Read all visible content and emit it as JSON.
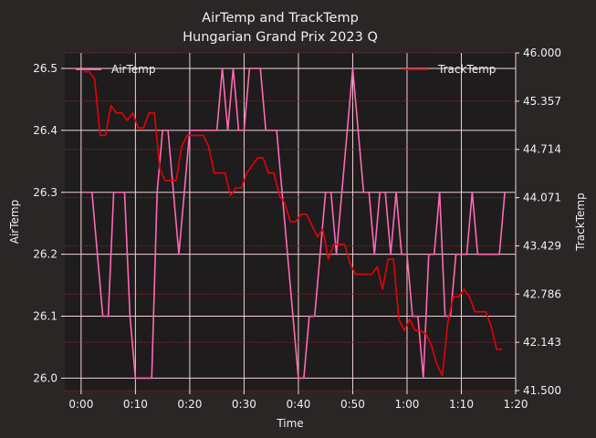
{
  "chart_data": {
    "type": "line",
    "title": "AirTemp and TrackTemp",
    "subtitle": "Hungarian Grand Prix 2023 Q",
    "xlabel": "Time",
    "ylabel_left": "AirTemp",
    "ylabel_right": "TrackTemp",
    "x_unit": "minutes",
    "xlim": [
      -3,
      80
    ],
    "x_ticks": [
      "0:00",
      "0:10",
      "0:20",
      "0:30",
      "0:40",
      "0:50",
      "1:00",
      "1:10",
      "1:20"
    ],
    "ylim_left": [
      25.98,
      26.525
    ],
    "y_ticks_left": [
      "26.0",
      "26.1",
      "26.2",
      "26.3",
      "26.4",
      "26.5"
    ],
    "ylim_right": [
      41.5,
      46.0
    ],
    "y_ticks_right": [
      "41.500",
      "42.143",
      "42.786",
      "43.429",
      "44.071",
      "44.714",
      "45.357",
      "46.000"
    ],
    "grid": true,
    "background": "#1e1c1c",
    "series": [
      {
        "name": "AirTemp",
        "axis": "left",
        "color": "#ff69b4",
        "legend_position": "top-left",
        "points": [
          [
            1,
            26.3
          ],
          [
            2,
            26.3
          ],
          [
            3,
            26.2
          ],
          [
            4,
            26.1
          ],
          [
            5,
            26.1
          ],
          [
            6,
            26.3
          ],
          [
            7,
            26.3
          ],
          [
            8,
            26.3
          ],
          [
            9,
            26.1
          ],
          [
            10,
            26.0
          ],
          [
            11,
            26.0
          ],
          [
            12,
            26.0
          ],
          [
            13,
            26.0
          ],
          [
            14,
            26.3
          ],
          [
            15,
            26.4
          ],
          [
            16,
            26.4
          ],
          [
            17,
            26.3
          ],
          [
            18,
            26.2
          ],
          [
            19,
            26.3
          ],
          [
            20,
            26.4
          ],
          [
            21,
            26.4
          ],
          [
            22,
            26.4
          ],
          [
            23,
            26.4
          ],
          [
            24,
            26.4
          ],
          [
            25,
            26.4
          ],
          [
            26,
            26.5
          ],
          [
            27,
            26.4
          ],
          [
            28,
            26.5
          ],
          [
            29,
            26.4
          ],
          [
            30,
            26.4
          ],
          [
            31,
            26.5
          ],
          [
            32,
            26.5
          ],
          [
            33,
            26.5
          ],
          [
            34,
            26.4
          ],
          [
            35,
            26.4
          ],
          [
            36,
            26.4
          ],
          [
            37,
            26.3
          ],
          [
            38,
            26.2
          ],
          [
            39,
            26.1
          ],
          [
            40,
            26.0
          ],
          [
            41,
            26.0
          ],
          [
            42,
            26.1
          ],
          [
            43,
            26.1
          ],
          [
            44,
            26.2
          ],
          [
            45,
            26.3
          ],
          [
            46,
            26.3
          ],
          [
            47,
            26.2
          ],
          [
            48,
            26.3
          ],
          [
            49,
            26.4
          ],
          [
            50,
            26.5
          ],
          [
            51,
            26.4
          ],
          [
            52,
            26.3
          ],
          [
            53,
            26.3
          ],
          [
            54,
            26.2
          ],
          [
            55,
            26.3
          ],
          [
            56,
            26.3
          ],
          [
            57,
            26.2
          ],
          [
            58,
            26.3
          ],
          [
            59,
            26.2
          ],
          [
            60,
            26.2
          ],
          [
            61,
            26.1
          ],
          [
            62,
            26.1
          ],
          [
            63,
            26.0
          ],
          [
            64,
            26.2
          ],
          [
            65,
            26.2
          ],
          [
            66,
            26.3
          ],
          [
            67,
            26.1
          ],
          [
            68,
            26.1
          ],
          [
            69,
            26.2
          ],
          [
            70,
            26.2
          ],
          [
            71,
            26.2
          ],
          [
            72,
            26.3
          ],
          [
            73,
            26.2
          ],
          [
            74,
            26.2
          ],
          [
            75,
            26.2
          ],
          [
            76,
            26.2
          ],
          [
            77,
            26.2
          ],
          [
            78,
            26.3
          ]
        ]
      },
      {
        "name": "TrackTemp",
        "axis": "right",
        "color": "#e8000b",
        "legend_position": "top-right",
        "points": [
          [
            0.5,
            45.75
          ],
          [
            1.5,
            45.75
          ],
          [
            2.5,
            45.65
          ],
          [
            3.5,
            44.9
          ],
          [
            4.5,
            44.9
          ],
          [
            5.5,
            45.3
          ],
          [
            6.5,
            45.2
          ],
          [
            7.5,
            45.2
          ],
          [
            8.5,
            45.1
          ],
          [
            9.5,
            45.2
          ],
          [
            10.5,
            45.0
          ],
          [
            11.5,
            45.0
          ],
          [
            12.5,
            45.2
          ],
          [
            13.5,
            45.2
          ],
          [
            14.5,
            44.45
          ],
          [
            15.5,
            44.3
          ],
          [
            16.5,
            44.3
          ],
          [
            17.5,
            44.3
          ],
          [
            18.5,
            44.75
          ],
          [
            19.5,
            44.9
          ],
          [
            20.5,
            44.9
          ],
          [
            21.5,
            44.9
          ],
          [
            22.5,
            44.9
          ],
          [
            23.5,
            44.75
          ],
          [
            24.5,
            44.4
          ],
          [
            25.5,
            44.4
          ],
          [
            26.5,
            44.4
          ],
          [
            27.5,
            44.1
          ],
          [
            28.5,
            44.2
          ],
          [
            29.5,
            44.2
          ],
          [
            30.5,
            44.4
          ],
          [
            31.5,
            44.5
          ],
          [
            32.5,
            44.6
          ],
          [
            33.5,
            44.6
          ],
          [
            34.5,
            44.4
          ],
          [
            35.5,
            44.4
          ],
          [
            36.5,
            44.1
          ],
          [
            37.5,
            44.0
          ],
          [
            38.5,
            43.75
          ],
          [
            39.5,
            43.75
          ],
          [
            40.5,
            43.85
          ],
          [
            41.5,
            43.85
          ],
          [
            42.5,
            43.7
          ],
          [
            43.5,
            43.55
          ],
          [
            44.5,
            43.65
          ],
          [
            45.5,
            43.25
          ],
          [
            46.5,
            43.45
          ],
          [
            47.5,
            43.45
          ],
          [
            48.5,
            43.45
          ],
          [
            49.5,
            43.2
          ],
          [
            50.5,
            43.05
          ],
          [
            51.5,
            43.05
          ],
          [
            52.5,
            43.05
          ],
          [
            53.5,
            43.05
          ],
          [
            54.5,
            43.15
          ],
          [
            55.5,
            42.85
          ],
          [
            56.5,
            43.25
          ],
          [
            57.5,
            43.25
          ],
          [
            58.5,
            42.45
          ],
          [
            59.5,
            42.3
          ],
          [
            60.5,
            42.45
          ],
          [
            61.5,
            42.3
          ],
          [
            62.5,
            42.3
          ],
          [
            63.5,
            42.25
          ],
          [
            64.5,
            42.1
          ],
          [
            65.5,
            41.85
          ],
          [
            66.5,
            41.7
          ],
          [
            67.5,
            42.4
          ],
          [
            68.5,
            42.75
          ],
          [
            69.5,
            42.75
          ],
          [
            70.5,
            42.85
          ],
          [
            71.5,
            42.75
          ],
          [
            72.5,
            42.55
          ],
          [
            73.5,
            42.55
          ],
          [
            74.5,
            42.55
          ],
          [
            75.5,
            42.35
          ],
          [
            76.5,
            42.05
          ],
          [
            77.5,
            42.05
          ]
        ]
      }
    ]
  }
}
